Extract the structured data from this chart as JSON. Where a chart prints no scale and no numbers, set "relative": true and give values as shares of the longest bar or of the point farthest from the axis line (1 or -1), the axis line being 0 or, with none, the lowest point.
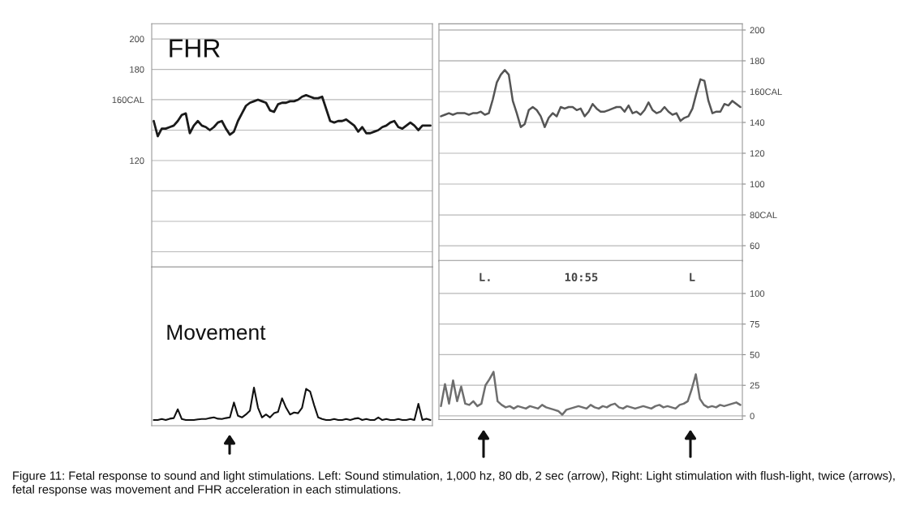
{
  "chart_data": [
    {
      "type": "line",
      "categories": [
        null,
        null,
        null,
        null,
        null,
        null,
        null,
        null,
        null,
        null,
        null,
        null,
        null,
        null,
        null,
        null,
        null,
        null,
        null,
        null,
        null,
        null,
        null,
        null,
        null,
        null,
        null,
        null,
        null,
        null,
        null,
        null,
        null,
        null,
        null,
        null,
        null,
        null,
        null,
        null,
        null,
        null,
        null,
        null,
        null,
        null,
        null,
        null,
        null,
        null,
        null,
        null,
        null,
        null,
        null,
        null,
        null,
        null,
        null,
        null,
        null,
        null,
        null,
        null,
        null,
        null,
        null,
        null,
        null,
        null
      ],
      "values": [
        146,
        136,
        141,
        141,
        142,
        143,
        146,
        150,
        151,
        138,
        143,
        146,
        143,
        142,
        140,
        142,
        145,
        146,
        141,
        137,
        139,
        146,
        151,
        156,
        158,
        159,
        160,
        159,
        158,
        153,
        152,
        157,
        158,
        158,
        159,
        159,
        160,
        162,
        163,
        162,
        161,
        161,
        162,
        154,
        146,
        145,
        146,
        146,
        147,
        145,
        143,
        139,
        142,
        138,
        138,
        139,
        140,
        142,
        143,
        145,
        146,
        142,
        141,
        143,
        145,
        143,
        140,
        143,
        143,
        143
      ],
      "color": "#1a1a1a",
      "ylim": [
        50,
        210
      ],
      "yticks": [
        200,
        180,
        {
          "value": 160,
          "label": "160CAL"
        },
        {
          "value": 140,
          "label": null
        },
        120,
        {
          "value": 100,
          "label": null
        },
        {
          "value": 80,
          "label": null
        },
        {
          "value": 60,
          "label": null
        }
      ],
      "grid": "y",
      "annotations": [
        "FHR"
      ]
    },
    {
      "type": "line",
      "categories": [
        null,
        null,
        null,
        null,
        null,
        null,
        null,
        null,
        null,
        null,
        null,
        null,
        null,
        null,
        null,
        null,
        null,
        null,
        null,
        null,
        null,
        null,
        null,
        null,
        null,
        null,
        null,
        null,
        null,
        null,
        null,
        null,
        null,
        null,
        null,
        null,
        null,
        null,
        null,
        null,
        null,
        null,
        null,
        null,
        null,
        null,
        null,
        null,
        null,
        null,
        null,
        null,
        null,
        null,
        null,
        null,
        null,
        null,
        null,
        null,
        null,
        null,
        null,
        null,
        null,
        null,
        null,
        null,
        null,
        null,
        null,
        null,
        null,
        null,
        null,
        null
      ],
      "values": [
        144,
        145,
        146,
        145,
        146,
        146,
        146,
        145,
        146,
        146,
        147,
        145,
        146,
        155,
        166,
        171,
        174,
        171,
        154,
        146,
        137,
        139,
        148,
        150,
        148,
        144,
        137,
        143,
        146,
        144,
        150,
        149,
        150,
        150,
        148,
        149,
        144,
        147,
        152,
        149,
        147,
        147,
        148,
        149,
        150,
        150,
        147,
        151,
        146,
        147,
        145,
        148,
        153,
        148,
        146,
        147,
        150,
        147,
        145,
        146,
        141,
        143,
        144,
        149,
        159,
        168,
        167,
        154,
        146,
        147,
        147,
        152,
        151,
        154,
        152,
        150
      ],
      "color": "#555555",
      "ylim": [
        50,
        204
      ],
      "yticks": [
        200,
        180,
        {
          "value": 160,
          "label": "160CAL"
        },
        140,
        120,
        100,
        {
          "value": 80,
          "label": "80CAL"
        },
        60
      ],
      "grid": "y"
    },
    {
      "type": "line",
      "relative": true,
      "categories": [
        null,
        null,
        null,
        null,
        null,
        null,
        null,
        null,
        null,
        null,
        null,
        null,
        null,
        null,
        null,
        null,
        null,
        null,
        null,
        null,
        null,
        null,
        null,
        null,
        null,
        null,
        null,
        null,
        null,
        null,
        null,
        null,
        null,
        null,
        null,
        null,
        null,
        null,
        null,
        null,
        null,
        null,
        null,
        null,
        null,
        null,
        null,
        null,
        null,
        null,
        null,
        null,
        null,
        null,
        null,
        null,
        null,
        null,
        null,
        null,
        null,
        null,
        null,
        null,
        null,
        null,
        null,
        null,
        null,
        null
      ],
      "values": [
        0,
        0,
        0.03,
        0,
        0.04,
        0.06,
        0.33,
        0.03,
        0,
        0,
        0,
        0.02,
        0.03,
        0.03,
        0.06,
        0.08,
        0.04,
        0.03,
        0.06,
        0.08,
        0.54,
        0.13,
        0.08,
        0.17,
        0.29,
        1,
        0.38,
        0.08,
        0.17,
        0.08,
        0.21,
        0.25,
        0.67,
        0.38,
        0.17,
        0.23,
        0.21,
        0.38,
        0.96,
        0.88,
        0.46,
        0.08,
        0.03,
        0,
        0,
        0.03,
        0,
        0,
        0.03,
        0,
        0.04,
        0.06,
        0,
        0.03,
        0,
        0,
        0.08,
        0,
        0.03,
        0,
        0,
        0.03,
        0,
        0,
        0.03,
        0,
        0.5,
        0,
        0.04,
        0
      ],
      "color": "#111111",
      "annotations": [
        "Movement"
      ]
    },
    {
      "type": "line",
      "categories": [
        null,
        null,
        null,
        null,
        null,
        null,
        null,
        null,
        null,
        null,
        null,
        null,
        null,
        null,
        null,
        null,
        null,
        null,
        null,
        null,
        null,
        null,
        null,
        null,
        null,
        null,
        null,
        null,
        null,
        null,
        null,
        null,
        null,
        null,
        null,
        null,
        null,
        null,
        null,
        null,
        null,
        null,
        null,
        null,
        null,
        null,
        null,
        null,
        null,
        null,
        null,
        null,
        null,
        null,
        null,
        null,
        null,
        null,
        null,
        null,
        null,
        null,
        null,
        null,
        null,
        null,
        null,
        null,
        null,
        null,
        null,
        null,
        null,
        null,
        null
      ],
      "values": [
        8,
        26,
        10,
        29,
        12,
        24,
        10,
        9,
        12,
        8,
        10,
        25,
        30,
        36,
        12,
        9,
        7,
        8,
        6,
        8,
        7,
        6,
        8,
        7,
        6,
        9,
        7,
        6,
        5,
        4,
        1,
        5,
        6,
        7,
        8,
        7,
        6,
        9,
        7,
        6,
        8,
        7,
        9,
        10,
        7,
        6,
        8,
        7,
        6,
        7,
        8,
        7,
        6,
        8,
        9,
        7,
        8,
        7,
        6,
        9,
        10,
        12,
        22,
        34,
        14,
        9,
        7,
        8,
        7,
        9,
        8,
        9,
        10,
        11,
        9
      ],
      "color": "#6e6e6e",
      "ylim": [
        -3,
        127
      ],
      "yticks": [
        100,
        75,
        50,
        25,
        0
      ],
      "grid": "y",
      "annotations": [
        "L.",
        "10:55",
        "L"
      ]
    },
    {
      "type": "other",
      "annotations": [
        "Figure 11: Fetal response to sound and light stimulations. Left: Sound stimulation, 1,000 hz, 80 db, 2 sec (arrow), Right: Light stimulation with flush-light, twice (arrows), fetal response was movement and FHR acceleration in each stimulations."
      ]
    }
  ]
}
